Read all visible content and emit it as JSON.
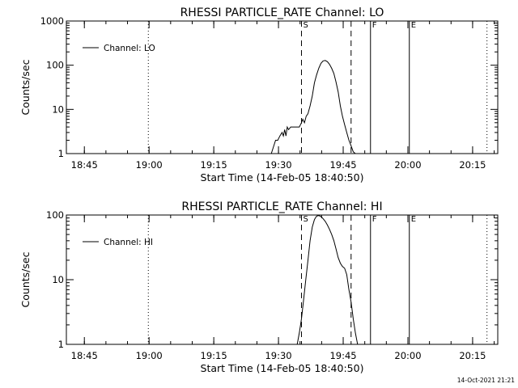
{
  "timestamp": "14-Oct-2021 21:21",
  "chart_data": [
    {
      "type": "line",
      "title": "RHESSI PARTICLE_RATE Channel: LO",
      "xlabel": "Start Time (14-Feb-05 18:40:50)",
      "ylabel": "Counts/sec",
      "x_ticks": [
        "18:45",
        "19:00",
        "19:15",
        "19:30",
        "19:45",
        "20:00",
        "20:15"
      ],
      "y_ticks": [
        "1",
        "10",
        "100",
        "1000"
      ],
      "yscale": "log",
      "ylim": [
        1,
        1000
      ],
      "xlim_minutes_after_start": [
        0,
        100
      ],
      "legend": {
        "label": "Channel: LO",
        "placement": "top-left"
      },
      "grid": false,
      "series": [
        {
          "name": "Channel: LO",
          "x": [
            47.5,
            48.5,
            49.0,
            49.5,
            50.0,
            50.3,
            50.6,
            50.9,
            51.2,
            51.5,
            52.0,
            52.5,
            53.0,
            53.5,
            54.0,
            54.5,
            54.8,
            55.2,
            55.6,
            56.0,
            56.5,
            57.0,
            57.5,
            58.0,
            58.5,
            59.0,
            59.5,
            60.0,
            60.5,
            61.0,
            61.5,
            62.0,
            62.5,
            63.0,
            63.5,
            64.0,
            64.5,
            65.0,
            65.5,
            66.0,
            66.5,
            67.0
          ],
          "y": [
            1,
            2,
            2,
            2.5,
            3,
            2.5,
            3.5,
            2.5,
            4,
            3.5,
            4,
            4,
            4,
            4,
            4,
            5,
            6,
            5,
            7,
            8,
            12,
            20,
            40,
            60,
            85,
            110,
            125,
            128,
            120,
            105,
            85,
            65,
            42,
            25,
            12,
            7,
            4.5,
            3,
            2,
            1.5,
            1.1,
            1
          ]
        }
      ],
      "markers": [
        {
          "label": "S",
          "minute": 54.5,
          "style": "dashed"
        },
        {
          "label": "",
          "minute": 66.0,
          "style": "dashed"
        },
        {
          "label": "F",
          "minute": 70.5,
          "style": "solid"
        },
        {
          "label": "E",
          "minute": 79.5,
          "style": "solid"
        },
        {
          "label": "",
          "minute": 19.0,
          "style": "dotted"
        },
        {
          "label": "",
          "minute": 97.5,
          "style": "dotted"
        }
      ]
    },
    {
      "type": "line",
      "title": "RHESSI PARTICLE_RATE Channel: HI",
      "xlabel": "Start Time (14-Feb-05 18:40:50)",
      "ylabel": "Counts/sec",
      "x_ticks": [
        "18:45",
        "19:00",
        "19:15",
        "19:30",
        "19:45",
        "20:00",
        "20:15"
      ],
      "y_ticks": [
        "1",
        "10",
        "100"
      ],
      "yscale": "log",
      "ylim": [
        1,
        100
      ],
      "xlim_minutes_after_start": [
        0,
        100
      ],
      "legend": {
        "label": "Channel: HI",
        "placement": "top-left"
      },
      "grid": false,
      "series": [
        {
          "name": "Channel: HI",
          "x": [
            53.5,
            54.0,
            54.5,
            55.0,
            55.5,
            56.0,
            56.5,
            57.0,
            57.5,
            58.0,
            58.5,
            59.0,
            59.5,
            60.0,
            60.5,
            61.0,
            61.5,
            62.0,
            62.5,
            63.0,
            63.5,
            64.0,
            64.5,
            65.0,
            65.5,
            66.0,
            66.5,
            67.0,
            67.5
          ],
          "y": [
            1,
            1.5,
            2.5,
            5,
            10,
            20,
            40,
            65,
            85,
            96,
            98,
            95,
            88,
            80,
            70,
            60,
            50,
            40,
            30,
            22,
            18,
            16,
            15,
            12,
            7,
            4.5,
            2.5,
            1.5,
            1
          ]
        }
      ],
      "markers": [
        {
          "label": "S",
          "minute": 54.5,
          "style": "dashed"
        },
        {
          "label": "",
          "minute": 66.0,
          "style": "dashed"
        },
        {
          "label": "F",
          "minute": 70.5,
          "style": "solid"
        },
        {
          "label": "E",
          "minute": 79.5,
          "style": "solid"
        },
        {
          "label": "",
          "minute": 19.0,
          "style": "dotted"
        },
        {
          "label": "",
          "minute": 97.5,
          "style": "dotted"
        }
      ]
    }
  ]
}
